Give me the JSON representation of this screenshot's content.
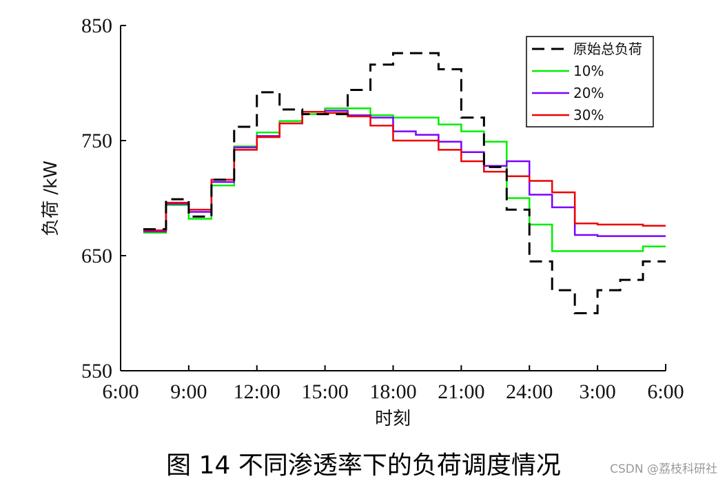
{
  "caption": "图 14  不同渗透率下的负荷调度情况",
  "watermark": "CSDN @荔枝科研社",
  "chart_data": {
    "type": "line",
    "step": true,
    "xlabel": "时刻",
    "ylabel": "负荷 /kW",
    "ylim": [
      550,
      850
    ],
    "yticks": [
      550,
      650,
      750,
      850
    ],
    "xlim": [
      6,
      30
    ],
    "xticks": [
      6,
      9,
      12,
      15,
      18,
      21,
      24,
      27,
      30
    ],
    "xtick_labels": [
      "6:00",
      "9:00",
      "12:00",
      "15:00",
      "18:00",
      "21:00",
      "24:00",
      "3:00",
      "6:00"
    ],
    "x": [
      7,
      8,
      9,
      10,
      11,
      12,
      13,
      14,
      15,
      16,
      17,
      18,
      19,
      20,
      21,
      22,
      23,
      24,
      25,
      26,
      27,
      28,
      29,
      30
    ],
    "legend_position": "top-right",
    "series": [
      {
        "name": "原始总负荷",
        "color": "#000000",
        "dash": true,
        "values": [
          673,
          699,
          684,
          716,
          762,
          792,
          777,
          773,
          773,
          794,
          816,
          826,
          826,
          812,
          770,
          727,
          690,
          645,
          620,
          600,
          620,
          629,
          645,
          645
        ]
      },
      {
        "name": "10%",
        "color": "#00ee00",
        "dash": false,
        "values": [
          670,
          694,
          682,
          711,
          745,
          757,
          767,
          773,
          778,
          778,
          772,
          770,
          770,
          764,
          758,
          749,
          700,
          677,
          654,
          654,
          654,
          654,
          658,
          658
        ]
      },
      {
        "name": "20%",
        "color": "#7a00ff",
        "dash": false,
        "values": [
          671,
          695,
          688,
          714,
          744,
          754,
          765,
          775,
          776,
          772,
          770,
          758,
          755,
          749,
          740,
          728,
          732,
          703,
          692,
          668,
          667,
          667,
          667,
          667
        ]
      },
      {
        "name": "30%",
        "color": "#ee0000",
        "dash": false,
        "values": [
          672,
          696,
          690,
          716,
          742,
          753,
          765,
          775,
          774,
          771,
          763,
          750,
          750,
          742,
          732,
          723,
          719,
          715,
          705,
          678,
          677,
          677,
          676,
          676
        ]
      }
    ]
  }
}
